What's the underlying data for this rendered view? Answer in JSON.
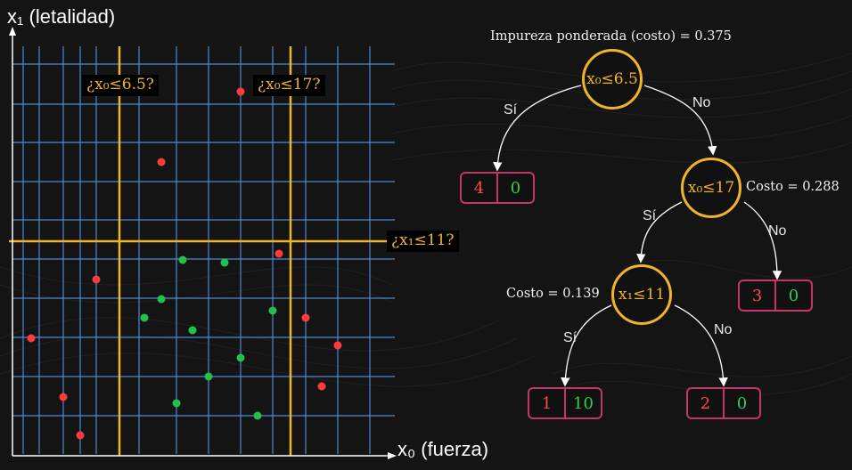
{
  "scatter": {
    "x_axis_label": "x₀ (fuerza)",
    "y_axis_label": "x₁ (letalidad)",
    "split_labels": {
      "x0_6_5": "¿x₀≤6.5?",
      "x0_17": "¿x₀≤17?",
      "x1_11": "¿x₁≤11?"
    },
    "colors": {
      "red_class": "#ff3b3b",
      "green_class": "#22c14a",
      "split_line": "#f0b429",
      "grid": "#4d86d8"
    }
  },
  "tree": {
    "root": {
      "label": "x₀≤6.5",
      "cost_text": "Impureza ponderada (costo) = 0.375"
    },
    "node2": {
      "label": "x₀≤17",
      "cost_text": "Costo = 0.288"
    },
    "node3": {
      "label": "x₁≤11",
      "cost_text": "Costo = 0.139"
    },
    "branch_yes": "Sí",
    "branch_no": "No",
    "leaves": [
      {
        "red": "4",
        "green": "0"
      },
      {
        "red": "3",
        "green": "0"
      },
      {
        "red": "1",
        "green": "10"
      },
      {
        "red": "2",
        "green": "0"
      }
    ]
  }
}
